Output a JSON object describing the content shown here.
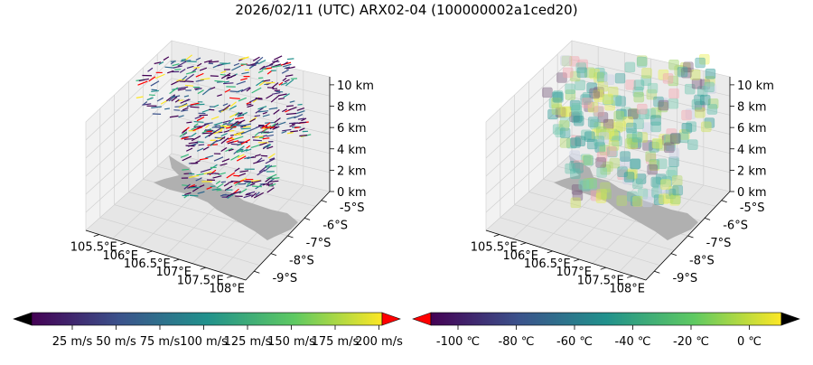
{
  "figure": {
    "title": "2026/02/11 (UTC) ARX02-04 (100000002a1ced20)"
  },
  "chart_data": [
    {
      "type": "3d-vector-field",
      "panel": "left",
      "x_ticks": [
        "105.5°E",
        "106°E",
        "106.5°E",
        "107°E",
        "107.5°E",
        "108°E"
      ],
      "y_ticks": [
        "-5°S",
        "-6°S",
        "-7°S",
        "-8°S",
        "-9°S"
      ],
      "z_ticks": [
        "0 km",
        "2 km",
        "4 km",
        "6 km",
        "8 km",
        "10 km"
      ],
      "colorbar": {
        "cmap": "viridis",
        "extend": "both",
        "under_color": "#000000",
        "over_color": "#ff0000",
        "ticks": [
          "25 m/s",
          "50 m/s",
          "75 m/s",
          "100 m/s",
          "125 m/s",
          "150 m/s",
          "175 m/s",
          "200 m/s"
        ]
      }
    },
    {
      "type": "3d-voxel",
      "panel": "right",
      "x_ticks": [
        "105.5°E",
        "106°E",
        "106.5°E",
        "107°E",
        "107.5°E",
        "108°E"
      ],
      "y_ticks": [
        "-5°S",
        "-6°S",
        "-7°S",
        "-8°S",
        "-9°S"
      ],
      "z_ticks": [
        "0 km",
        "2 km",
        "4 km",
        "6 km",
        "8 km",
        "10 km"
      ],
      "colorbar": {
        "cmap": "viridis",
        "extend": "both",
        "under_color": "#ff0000",
        "over_color": "#000000",
        "ticks": [
          "-100 ℃",
          "-80 ℃",
          "-60 ℃",
          "-40 ℃",
          "-20 ℃",
          "0 ℃"
        ]
      }
    }
  ]
}
